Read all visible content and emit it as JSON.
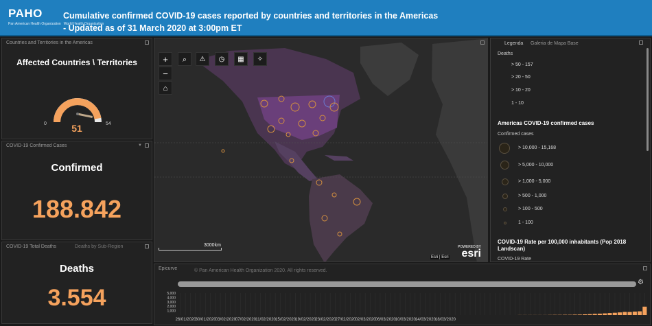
{
  "header": {
    "logo": "PAHO",
    "logo_sub1": "Pan American Health Organization",
    "logo_sub2": "World Health Organization",
    "title_line1": "Cumulative confirmed COVID-19 cases reported by countries and territories in the Americas",
    "title_line2": "- Updated as of 31 March 2020 at 3:00pm ET"
  },
  "countries_panel": {
    "tab": "Countries and Territories in the Americas",
    "title": "Affected Countries \\ Territories",
    "gauge_min": "0",
    "gauge_max": "54",
    "value": "51",
    "gauge_level": 0.944
  },
  "confirmed_panel": {
    "tab": "COVID-19 Confirmed Cases",
    "title": "Confirmed",
    "value": "188.842"
  },
  "deaths_panel": {
    "tab1": "COVID-19 Total Deaths",
    "tab2": "Deaths by Sub-Region",
    "title": "Deaths",
    "value": "3.554"
  },
  "map": {
    "zoom_in": "+",
    "zoom_out": "−",
    "scale_label": "3000km",
    "attribution": "Esri | Esri",
    "powered_by": "POWERED BY",
    "esri": "esri"
  },
  "legend": {
    "tab1": "Legenda",
    "tab2": "Galeria de Mapa Base",
    "deaths_title": "Deaths",
    "deaths_items": [
      "> 50 - 157",
      "> 20 - 50",
      "> 10 - 20",
      "1 - 10"
    ],
    "cases_title": "Americas COVID-19 confirmed cases",
    "cases_subtitle": "Confirmed cases",
    "cases_items": [
      "> 10,000 - 15,168",
      "> 5,000 - 10,000",
      "> 1,000 - 5,000",
      "> 500 - 1,000",
      "> 100 - 500",
      "1 - 100"
    ],
    "rate_title": "COVID-19 Rate per 100,000 inhabitants (Pop 2018 Landscan)",
    "rate_subtitle": "COVID-19 Rate"
  },
  "epicurve": {
    "tab": "Epicurve",
    "copyright": "© Pan American Health Organization 2020. All rights reserved.",
    "y_ticks": [
      "5,000",
      "4,000",
      "3,000",
      "2,000",
      "1,000"
    ],
    "dates": [
      "26/01/2020",
      "30/01/2020",
      "03/02/2020",
      "07/02/2020",
      "11/02/2020",
      "15/02/2020",
      "19/02/2020",
      "23/02/2020",
      "27/02/2020",
      "02/03/2020",
      "06/03/2020",
      "10/03/2020",
      "14/03/2020",
      "18/03/2020"
    ],
    "bars": [
      0,
      0,
      0,
      0,
      0,
      0,
      0,
      0,
      0,
      0,
      0,
      0,
      0,
      0,
      0,
      0,
      0,
      0,
      0,
      0,
      0,
      0,
      0,
      0,
      0,
      0,
      0,
      0,
      0,
      0,
      0,
      0,
      0,
      0,
      0,
      0,
      0,
      0,
      0,
      0,
      0,
      0,
      0,
      0,
      0,
      0,
      0,
      0,
      0,
      0,
      0,
      0,
      0,
      0,
      0,
      0,
      0,
      0,
      0,
      0,
      0,
      0,
      0,
      0,
      2,
      1,
      3,
      5,
      8,
      10,
      8,
      12,
      15,
      20,
      30,
      40,
      45,
      60,
      70,
      90,
      110,
      150,
      200,
      260,
      310,
      380,
      450,
      520,
      600,
      700,
      680,
      780,
      850,
      1900
    ],
    "bar_color": "#f5a25d"
  },
  "colors": {
    "header": "#1f7fbf",
    "accent": "#f5a25d"
  }
}
